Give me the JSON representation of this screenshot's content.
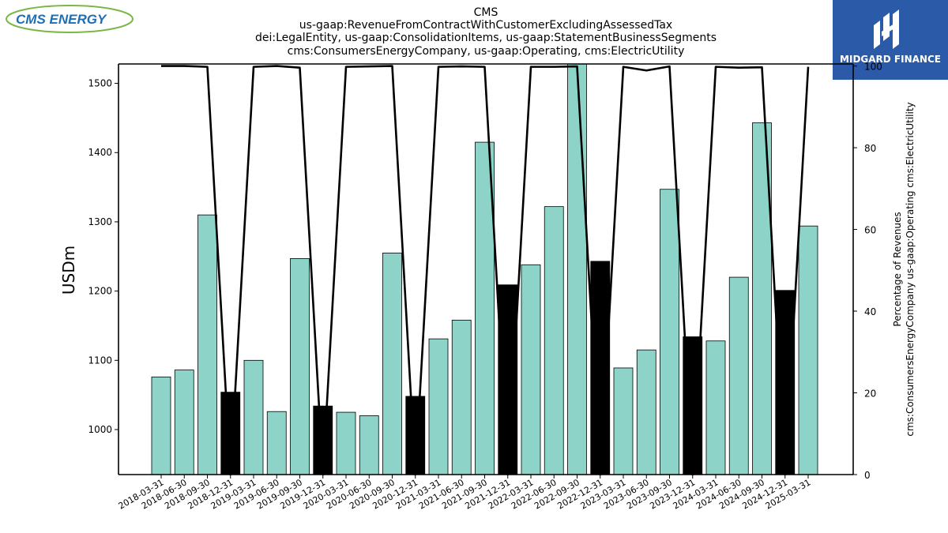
{
  "logos": {
    "left_text": "CMS ENERGY",
    "right_text": "MIDGARD FINANCE",
    "left_color": "#1b6fb8",
    "left_swoosh_color": "#7ab648",
    "right_bg": "#2a5aa8"
  },
  "chart_data": {
    "type": "bar",
    "title_lines": [
      "CMS",
      "us-gaap:RevenueFromContractWithCustomerExcludingAssessedTax",
      "dei:LegalEntity, us-gaap:ConsolidationItems, us-gaap:StatementBusinessSegments",
      "cms:ConsumersEnergyCompany, us-gaap:Operating, cms:ElectricUtility"
    ],
    "ylabel": "USDm",
    "y2label_lines": [
      "Percentage of Revenues",
      "cms:ConsumersEnergyCompany us-gaap:Operating cms:ElectricUtility"
    ],
    "ylim": [
      935,
      1528
    ],
    "y_ticks": [
      1000,
      1100,
      1200,
      1300,
      1400,
      1500
    ],
    "y2lim": [
      0,
      100.5
    ],
    "y2_ticks": [
      0,
      20,
      40,
      60,
      80,
      100
    ],
    "categories": [
      "2018-03-31",
      "2018-06-30",
      "2018-09-30",
      "2018-12-31",
      "2019-03-31",
      "2019-06-30",
      "2019-09-30",
      "2019-12-31",
      "2020-03-31",
      "2020-06-30",
      "2020-09-30",
      "2020-12-31",
      "2021-03-31",
      "2021-06-30",
      "2021-09-30",
      "2021-12-31",
      "2022-03-31",
      "2022-06-30",
      "2022-09-30",
      "2022-12-31",
      "2023-03-31",
      "2023-06-30",
      "2023-09-30",
      "2023-12-31",
      "2024-03-31",
      "2024-06-30",
      "2024-09-30",
      "2024-12-31",
      "2025-03-31"
    ],
    "values": [
      1076,
      1086,
      1310,
      1054,
      1100,
      1026,
      1247,
      1034,
      1025,
      1020,
      1255,
      1048,
      1131,
      1158,
      1415,
      1209,
      1238,
      1322,
      1530,
      1243,
      1089,
      1115,
      1347,
      1134,
      1128,
      1220,
      1443,
      1201,
      1294
    ],
    "highlight": [
      false,
      false,
      false,
      true,
      false,
      false,
      false,
      true,
      false,
      false,
      false,
      true,
      false,
      false,
      false,
      true,
      false,
      false,
      false,
      true,
      false,
      false,
      false,
      true,
      false,
      false,
      false,
      true,
      false
    ],
    "percent_line": [
      100,
      100,
      99.8,
      0,
      99.8,
      100,
      99.6,
      0,
      99.8,
      99.9,
      100,
      0,
      99.8,
      99.9,
      99.8,
      0,
      99.8,
      99.8,
      99.9,
      0,
      99.8,
      98.9,
      99.9,
      0,
      99.8,
      99.6,
      99.7,
      0,
      99.8
    ],
    "bar_color": "#8dd3c7",
    "highlight_color": "#000000",
    "line_color": "#000000",
    "grid": false
  }
}
